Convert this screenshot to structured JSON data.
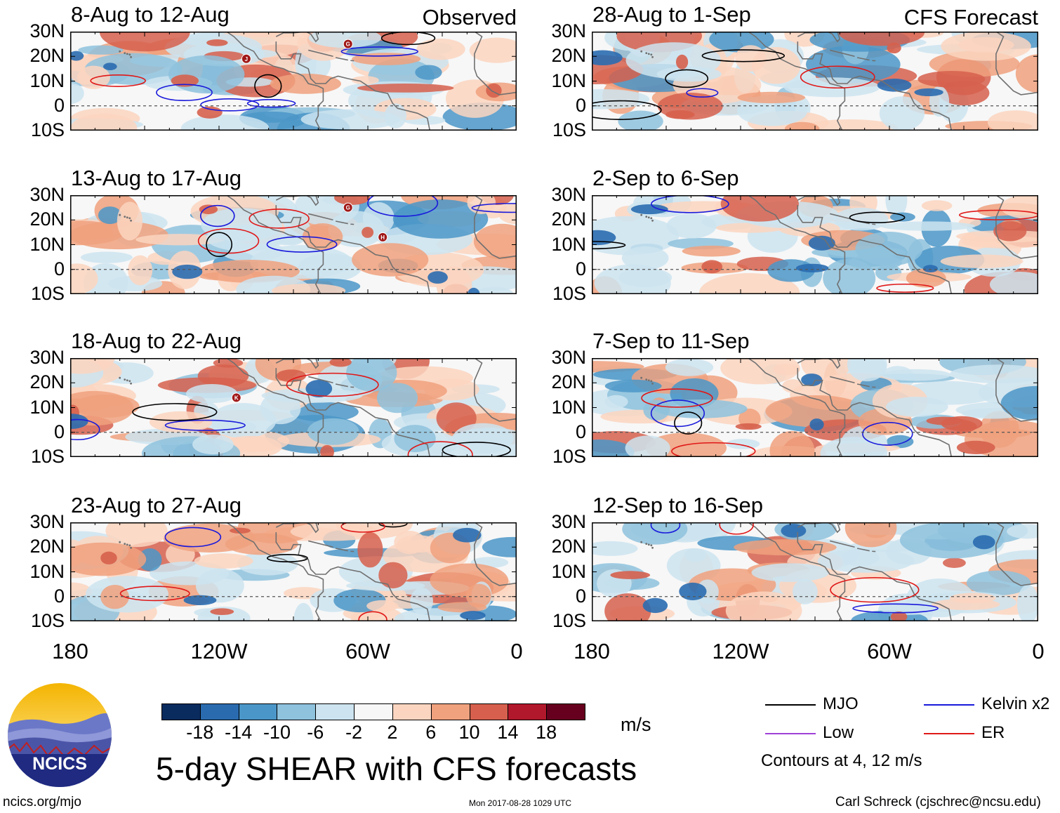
{
  "panels": [
    {
      "date_range": "8-Aug to 12-Aug",
      "tag": "Observed",
      "storms": [
        {
          "letter": "J",
          "lon": -109,
          "lat": 19
        },
        {
          "letter": "G",
          "lon": -68,
          "lat": 25
        }
      ]
    },
    {
      "date_range": "13-Aug to 17-Aug",
      "tag": "",
      "storms": [
        {
          "letter": "G",
          "lon": -68,
          "lat": 25
        },
        {
          "letter": "H",
          "lon": -54,
          "lat": 13
        }
      ]
    },
    {
      "date_range": "18-Aug to 22-Aug",
      "tag": "",
      "storms": [
        {
          "letter": "K",
          "lon": -113,
          "lat": 14
        }
      ]
    },
    {
      "date_range": "23-Aug to 27-Aug",
      "tag": "",
      "storms": []
    },
    {
      "date_range": "28-Aug to 1-Sep",
      "tag": "CFS Forecast",
      "storms": []
    },
    {
      "date_range": "2-Sep to 6-Sep",
      "tag": "",
      "storms": []
    },
    {
      "date_range": "7-Sep to 11-Sep",
      "tag": "",
      "storms": []
    },
    {
      "date_range": "12-Sep to 16-Sep",
      "tag": "",
      "storms": []
    }
  ],
  "lat_labels": [
    "30N",
    "20N",
    "10N",
    "0",
    "10S"
  ],
  "lon_labels": [
    "180",
    "120W",
    "60W",
    "0"
  ],
  "colorbar": {
    "colors": [
      "#0a2b5e",
      "#2a6bb0",
      "#4b96c8",
      "#8ec2dd",
      "#cde4f0",
      "#f7f7f7",
      "#fbd5c0",
      "#f0a17e",
      "#d6604d",
      "#b2182b",
      "#67001f"
    ],
    "ticks": [
      "-18",
      "-14",
      "-10",
      "-6",
      "-2",
      "2",
      "6",
      "10",
      "14",
      "18"
    ],
    "units": "m/s"
  },
  "title": "5-day SHEAR with CFS forecasts",
  "legend": {
    "items": [
      {
        "label": "MJO",
        "color": "#000000"
      },
      {
        "label": "Kelvin x2",
        "color": "#1a1adb"
      },
      {
        "label": "Low",
        "color": "#a040d8"
      },
      {
        "label": "ER",
        "color": "#e01818"
      }
    ],
    "note": "Contours at 4, 12 m/s"
  },
  "logo": {
    "text": "NCICS"
  },
  "footer": {
    "url": "ncics.org/mjo",
    "timestamp": "Mon 2017-08-28 1029 UTC",
    "credit": "Carl Schreck (cjschrec@ncsu.edu)"
  }
}
